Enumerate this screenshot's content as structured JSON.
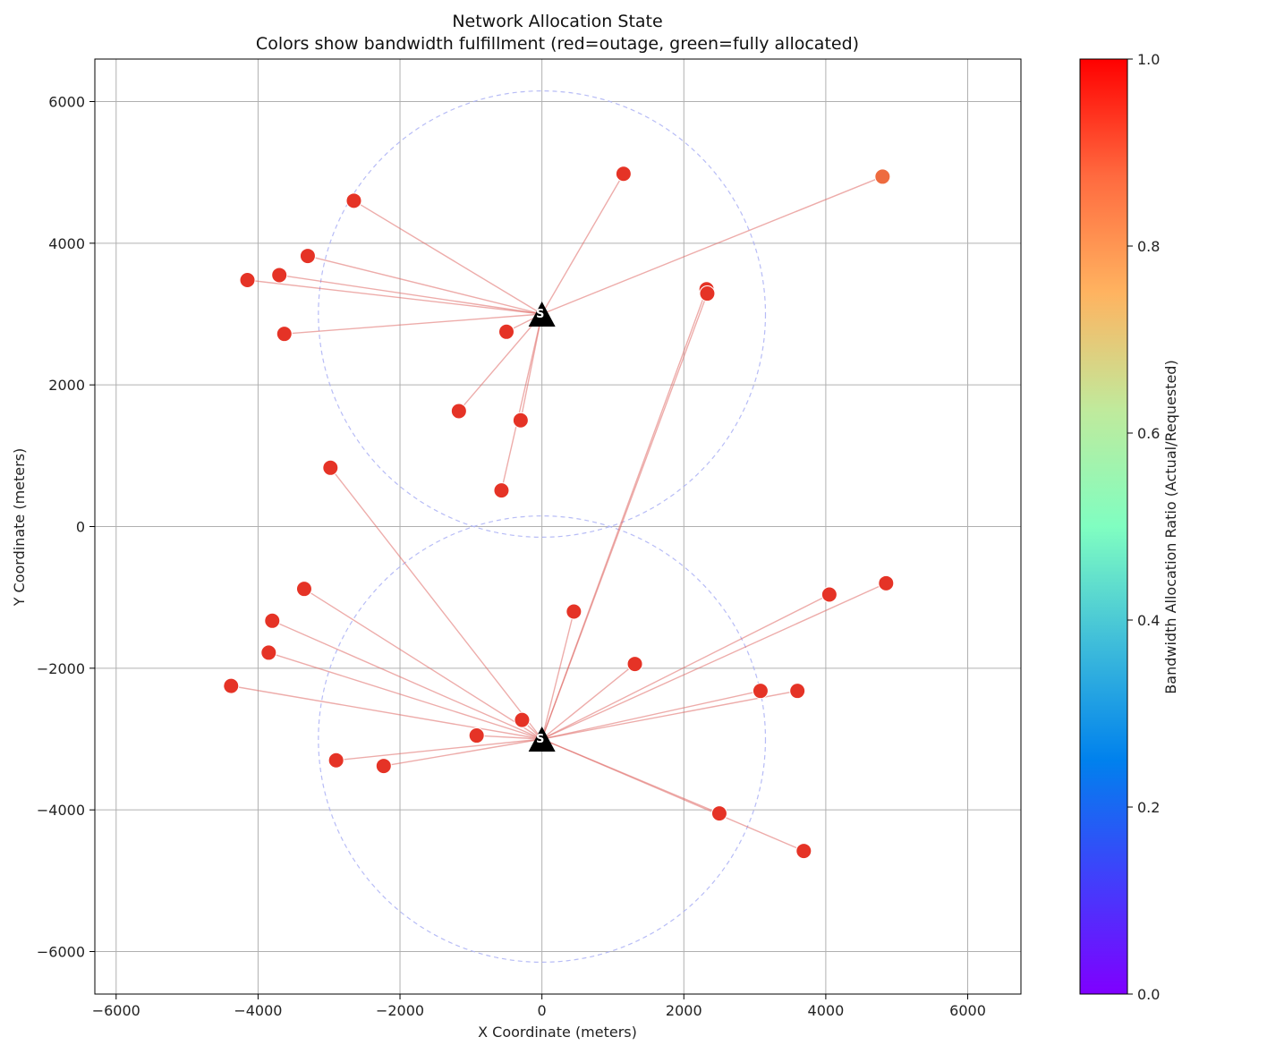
{
  "chart_data": {
    "type": "scatter",
    "title": "Network Allocation State",
    "subtitle": "Colors show bandwidth fulfillment (red=outage, green=fully allocated)",
    "xlabel": "X Coordinate (meters)",
    "ylabel": "Y Coordinate (meters)",
    "xlim": [
      -6300,
      6750
    ],
    "ylim": [
      -6600,
      6600
    ],
    "xticks": [
      -6000,
      -4000,
      -2000,
      0,
      2000,
      4000,
      6000
    ],
    "yticks": [
      -6000,
      -4000,
      -2000,
      0,
      2000,
      4000,
      6000
    ],
    "xtick_labels": [
      "−6000",
      "−4000",
      "−2000",
      "0",
      "2000",
      "4000",
      "6000"
    ],
    "ytick_labels": [
      "−6000",
      "−4000",
      "−2000",
      "0",
      "2000",
      "4000",
      "6000"
    ],
    "grid": true,
    "colorbar": {
      "label": "Bandwidth Allocation Ratio (Actual/Requested)",
      "range": [
        0,
        1
      ],
      "ticks": [
        0.0,
        0.2,
        0.4,
        0.6,
        0.8,
        1.0
      ],
      "tick_labels": [
        "0.0",
        "0.2",
        "0.4",
        "0.6",
        "0.8",
        "1.0"
      ],
      "colormap": "rainbow"
    },
    "base_stations": [
      {
        "label": "S",
        "x": 0,
        "y": 3000,
        "coverage_radius": 3150
      },
      {
        "label": "S",
        "x": 0,
        "y": -3000,
        "coverage_radius": 3150
      }
    ],
    "users": [
      {
        "x": 1150,
        "y": 4980,
        "ratio": 1.0,
        "station": 0
      },
      {
        "x": 4800,
        "y": 4940,
        "ratio": 0.9,
        "station": 0
      },
      {
        "x": -2650,
        "y": 4600,
        "ratio": 1.0,
        "station": 0
      },
      {
        "x": -3300,
        "y": 3820,
        "ratio": 1.0,
        "station": 0
      },
      {
        "x": -3700,
        "y": 3550,
        "ratio": 1.0,
        "station": 0
      },
      {
        "x": -4150,
        "y": 3480,
        "ratio": 1.0,
        "station": 0
      },
      {
        "x": -3630,
        "y": 2720,
        "ratio": 1.0,
        "station": 0
      },
      {
        "x": -500,
        "y": 2750,
        "ratio": 1.0,
        "station": 0
      },
      {
        "x": -1170,
        "y": 1630,
        "ratio": 1.0,
        "station": 0
      },
      {
        "x": -300,
        "y": 1500,
        "ratio": 1.0,
        "station": 0
      },
      {
        "x": -570,
        "y": 510,
        "ratio": 1.0,
        "station": 0
      },
      {
        "x": 2320,
        "y": 3350,
        "ratio": 1.0,
        "station": 1
      },
      {
        "x": 2330,
        "y": 3290,
        "ratio": 1.0,
        "station": 1
      },
      {
        "x": -2980,
        "y": 830,
        "ratio": 1.0,
        "station": 1
      },
      {
        "x": -3350,
        "y": -880,
        "ratio": 1.0,
        "station": 1
      },
      {
        "x": -3800,
        "y": -1330,
        "ratio": 1.0,
        "station": 1
      },
      {
        "x": -3850,
        "y": -1780,
        "ratio": 1.0,
        "station": 1
      },
      {
        "x": -4380,
        "y": -2250,
        "ratio": 1.0,
        "station": 1
      },
      {
        "x": -280,
        "y": -2730,
        "ratio": 1.0,
        "station": 1
      },
      {
        "x": -920,
        "y": -2950,
        "ratio": 1.0,
        "station": 1
      },
      {
        "x": -2900,
        "y": -3300,
        "ratio": 1.0,
        "station": 1
      },
      {
        "x": -2230,
        "y": -3380,
        "ratio": 1.0,
        "station": 1
      },
      {
        "x": 450,
        "y": -1200,
        "ratio": 1.0,
        "station": 1
      },
      {
        "x": 1310,
        "y": -1940,
        "ratio": 1.0,
        "station": 1
      },
      {
        "x": 4050,
        "y": -960,
        "ratio": 1.0,
        "station": 1
      },
      {
        "x": 4850,
        "y": -800,
        "ratio": 1.0,
        "station": 1
      },
      {
        "x": 3080,
        "y": -2320,
        "ratio": 1.0,
        "station": 1
      },
      {
        "x": 3600,
        "y": -2320,
        "ratio": 1.0,
        "station": 1
      },
      {
        "x": 2500,
        "y": -4050,
        "ratio": 1.0,
        "station": 1
      },
      {
        "x": 3690,
        "y": -4580,
        "ratio": 1.0,
        "station": 1
      }
    ]
  }
}
